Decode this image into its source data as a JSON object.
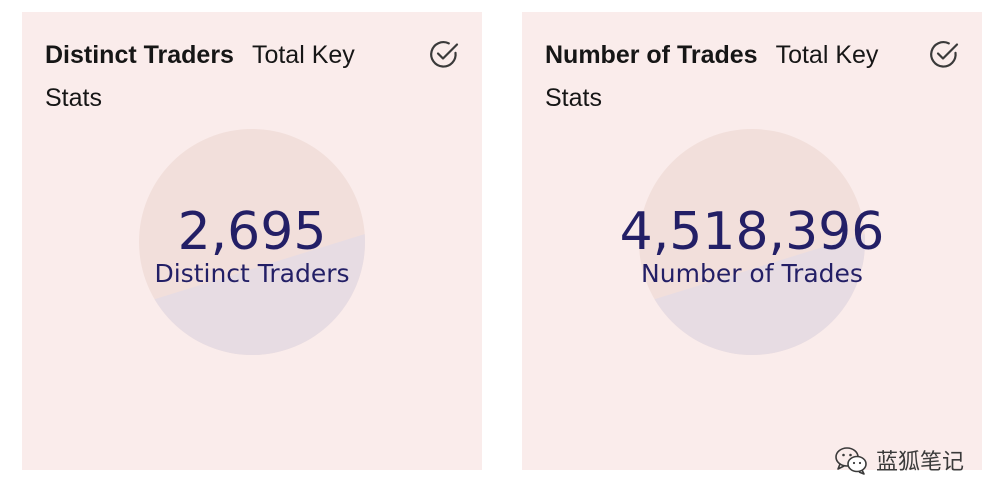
{
  "cards": [
    {
      "title": "Distinct Traders",
      "subtitle": "Total Key Stats",
      "value": "2,695",
      "label": "Distinct Traders",
      "icon": "check-circle-icon"
    },
    {
      "title": "Number of Trades",
      "subtitle": "Total Key Stats",
      "value": "4,518,396",
      "label": "Number of Trades",
      "icon": "check-circle-icon"
    }
  ],
  "colors": {
    "card_background": "#faeceb",
    "value_text": "#231f66",
    "disc_top": "#f2dfdb",
    "disc_bottom": "#e7dce3"
  },
  "watermark": {
    "text": "蓝狐笔记",
    "icon": "wechat-icon"
  }
}
